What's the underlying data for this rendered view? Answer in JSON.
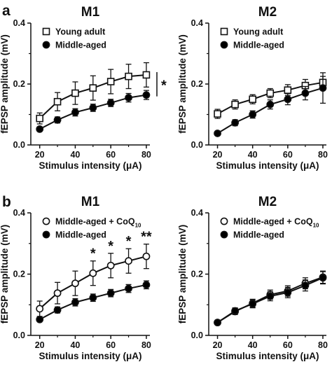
{
  "figure": {
    "panel_a": "a",
    "panel_b": "b"
  },
  "chart_data": [
    {
      "id": "a_m1",
      "type": "line",
      "title": "M1",
      "xlabel": "Stimulus intensity (μA)",
      "ylabel": "fEPSP amplitude (mV)",
      "x": [
        20,
        30,
        40,
        50,
        60,
        70,
        80
      ],
      "xticks": [
        "20",
        "40",
        "60",
        "80"
      ],
      "yticks": [
        "0.0",
        "0.2",
        "0.4"
      ],
      "xlim": [
        15,
        82
      ],
      "ylim": [
        0,
        0.4
      ],
      "grid": false,
      "legend_position": "top-left",
      "series": [
        {
          "name": "Young adult",
          "marker": "square",
          "fill": "#ffffff",
          "values": [
            0.087,
            0.142,
            0.17,
            0.187,
            0.208,
            0.225,
            0.23
          ],
          "errors": [
            0.018,
            0.03,
            0.037,
            0.04,
            0.04,
            0.04,
            0.04
          ]
        },
        {
          "name": "Middle-aged",
          "marker": "circle",
          "fill": "#000000",
          "values": [
            0.052,
            0.082,
            0.107,
            0.122,
            0.138,
            0.155,
            0.164
          ],
          "errors": [
            0.006,
            0.01,
            0.012,
            0.012,
            0.012,
            0.014,
            0.015
          ]
        }
      ],
      "annotations": [
        {
          "type": "bracket",
          "text": "*"
        }
      ]
    },
    {
      "id": "a_m2",
      "type": "line",
      "title": "M2",
      "xlabel": "Stimulus intensity (μA)",
      "ylabel": "fEPSP amplitude (mV)",
      "x": [
        20,
        30,
        40,
        50,
        60,
        70,
        80
      ],
      "xticks": [
        "20",
        "40",
        "60",
        "80"
      ],
      "yticks": [
        "0.0",
        "0.2",
        "0.4"
      ],
      "xlim": [
        15,
        82
      ],
      "ylim": [
        0,
        0.4
      ],
      "grid": false,
      "legend_position": "top-left",
      "series": [
        {
          "name": "Young adult",
          "marker": "square",
          "fill": "#ffffff",
          "values": [
            0.102,
            0.133,
            0.15,
            0.17,
            0.18,
            0.195,
            0.205
          ],
          "errors": [
            0.015,
            0.015,
            0.015,
            0.015,
            0.018,
            0.02,
            0.02
          ]
        },
        {
          "name": "Middle-aged",
          "marker": "circle",
          "fill": "#000000",
          "values": [
            0.038,
            0.073,
            0.1,
            0.133,
            0.15,
            0.17,
            0.187
          ],
          "errors": [
            0.005,
            0.01,
            0.012,
            0.015,
            0.018,
            0.022,
            0.05
          ]
        }
      ],
      "annotations": []
    },
    {
      "id": "b_m1",
      "type": "line",
      "title": "M1",
      "xlabel": "Stimulus intensity (μA)",
      "ylabel": "fEPSP amplitude (mV)",
      "x": [
        20,
        30,
        40,
        50,
        60,
        70,
        80
      ],
      "xticks": [
        "20",
        "40",
        "60",
        "80"
      ],
      "yticks": [
        "0.0",
        "0.2",
        "0.4"
      ],
      "xlim": [
        15,
        82
      ],
      "ylim": [
        0,
        0.4
      ],
      "grid": false,
      "legend_position": "top-left",
      "series": [
        {
          "name": "Middle-aged + CoQ",
          "subscript": "10",
          "marker": "circle",
          "fill": "#ffffff",
          "values": [
            0.087,
            0.138,
            0.17,
            0.203,
            0.228,
            0.243,
            0.258
          ],
          "errors": [
            0.025,
            0.035,
            0.04,
            0.04,
            0.04,
            0.04,
            0.04
          ]
        },
        {
          "name": "Middle-aged",
          "marker": "circle",
          "fill": "#000000",
          "values": [
            0.052,
            0.083,
            0.108,
            0.123,
            0.138,
            0.153,
            0.165
          ],
          "errors": [
            0.006,
            0.01,
            0.012,
            0.012,
            0.012,
            0.013,
            0.013
          ]
        }
      ],
      "annotations": [
        {
          "x": 50,
          "text": "*"
        },
        {
          "x": 60,
          "text": "*"
        },
        {
          "x": 70,
          "text": "*"
        },
        {
          "x": 80,
          "text": "**"
        }
      ]
    },
    {
      "id": "b_m2",
      "type": "line",
      "title": "M2",
      "xlabel": "Stimulus intensity (μA)",
      "ylabel": "fEPSP amplitude (mV)",
      "x": [
        20,
        30,
        40,
        50,
        60,
        70,
        80
      ],
      "xticks": [
        "20",
        "40",
        "60",
        "80"
      ],
      "yticks": [
        "0.0",
        "0.2",
        "0.4"
      ],
      "xlim": [
        15,
        82
      ],
      "ylim": [
        0,
        0.4
      ],
      "grid": false,
      "legend_position": "top-left",
      "series": [
        {
          "name": "Middle-aged + CoQ",
          "subscript": "10",
          "marker": "circle",
          "fill": "#ffffff",
          "values": [
            0.042,
            0.078,
            0.105,
            0.133,
            0.145,
            0.17,
            0.19
          ],
          "errors": [
            0.006,
            0.01,
            0.013,
            0.015,
            0.017,
            0.018,
            0.02
          ]
        },
        {
          "name": "Middle-aged",
          "marker": "circle",
          "fill": "#000000",
          "values": [
            0.042,
            0.08,
            0.103,
            0.128,
            0.14,
            0.163,
            0.188
          ],
          "errors": [
            0.006,
            0.01,
            0.013,
            0.015,
            0.017,
            0.018,
            0.02
          ]
        }
      ],
      "annotations": []
    }
  ]
}
